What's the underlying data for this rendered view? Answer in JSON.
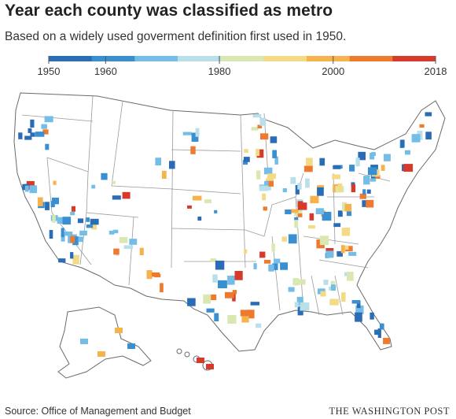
{
  "header": {
    "title": "Year each county was classified as metro",
    "subtitle": "Based on a widely used goverment definition first used in 1950."
  },
  "legend": {
    "ticks": [
      "1950",
      "1960",
      "1980",
      "2000",
      "2018"
    ],
    "tick_years": [
      1950,
      1960,
      1980,
      2000,
      2018
    ],
    "year_range": [
      1950,
      2018
    ],
    "colors": [
      "#2a6cb5",
      "#3a8fd0",
      "#74bde6",
      "#b9dfe8",
      "#d9e8b0",
      "#f3da84",
      "#f6b24c",
      "#ee7a2f",
      "#d63a2a"
    ]
  },
  "footer": {
    "source": "Source: Office of Management and Budget",
    "credit": "THE WASHINGTON POST"
  },
  "colors": {
    "background": "#ffffff",
    "non_metro": "#ffffff",
    "state_border": "#6a6a6a"
  }
}
